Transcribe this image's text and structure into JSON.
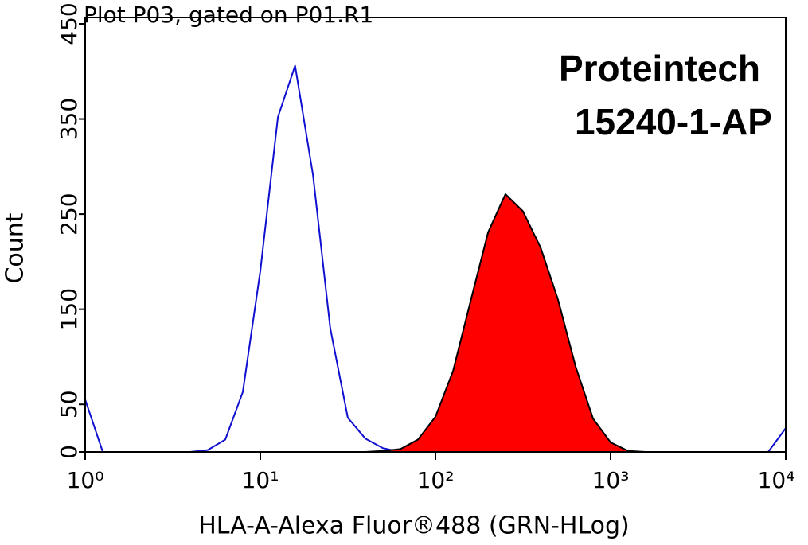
{
  "chart_data": {
    "type": "histogram-overlay",
    "title": "Plot P03, gated on P01.R1",
    "x_label": "HLA-A-Alexa Fluor®488 (GRN-HLog)",
    "y_label": "Count",
    "annotations": [
      "Proteintech",
      "15240-1-AP"
    ],
    "x_log": true,
    "xlim": [
      1,
      10000
    ],
    "xticks": [
      {
        "value": 1,
        "label": "10⁰"
      },
      {
        "value": 10,
        "label": "10¹"
      },
      {
        "value": 100,
        "label": "10²"
      },
      {
        "value": 1000,
        "label": "10³"
      },
      {
        "value": 10000,
        "label": "10⁴"
      }
    ],
    "ylim": [
      0,
      450
    ],
    "yticks": [
      0,
      50,
      150,
      250,
      350,
      450
    ],
    "x": [
      1,
      1.26,
      1.58,
      2,
      2.51,
      3.16,
      3.98,
      5.01,
      6.31,
      7.94,
      10,
      12.6,
      15.8,
      20,
      25.1,
      31.6,
      39.8,
      50.1,
      63.1,
      79.4,
      100,
      126,
      158,
      200,
      251,
      316,
      398,
      501,
      631,
      794,
      1000,
      1260,
      1580,
      2000,
      2510,
      3160,
      3980,
      5010,
      6310,
      7940,
      10000
    ],
    "series": [
      {
        "color": "#1010d0",
        "fill": false,
        "values": [
          55,
          0,
          0,
          0,
          0,
          0,
          0,
          2,
          13,
          63,
          190,
          352,
          406,
          291,
          130,
          36,
          14,
          4,
          0,
          0,
          0,
          0,
          0,
          0,
          0,
          0,
          0,
          0,
          0,
          0,
          0,
          0,
          0,
          0,
          0,
          0,
          0,
          0,
          0,
          0,
          25
        ]
      },
      {
        "color": "#ff0000",
        "fill": true,
        "values": [
          0,
          0,
          0,
          0,
          0,
          0,
          0,
          0,
          0,
          0,
          0,
          0,
          0,
          0,
          0,
          0,
          0,
          1,
          3,
          13,
          37,
          85,
          157,
          231,
          271,
          253,
          215,
          160,
          90,
          35,
          10,
          1,
          0,
          0,
          0,
          0,
          0,
          0,
          0,
          0,
          0
        ]
      }
    ]
  }
}
